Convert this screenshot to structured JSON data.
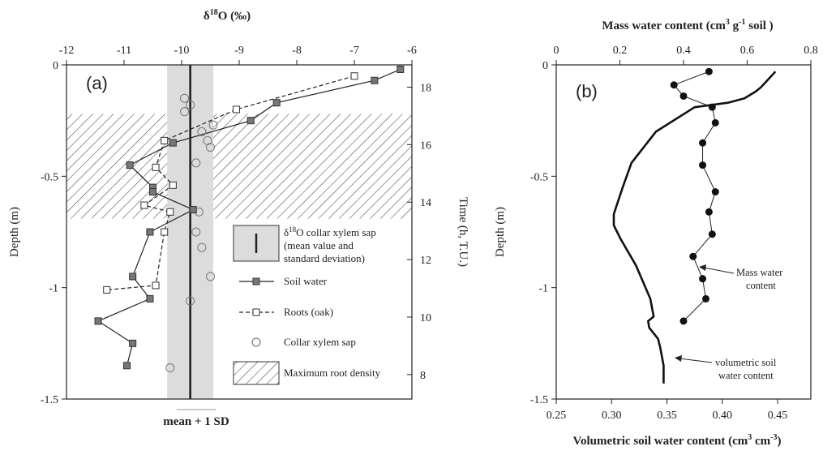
{
  "chart_data": [
    {
      "type": "scatter",
      "panel_label": "(a)",
      "title": "δ18O (‰)",
      "x_top_label": "δ18O (‰)",
      "x_top_ticks": [
        "-12",
        "-11",
        "-10",
        "-9",
        "-8",
        "-7",
        "-6"
      ],
      "xlim": [
        -12,
        -6
      ],
      "ylabel": "Depth (m)",
      "y_ticks": [
        "0",
        "-0.5",
        "-1",
        "-1.5"
      ],
      "ylim": [
        -1.5,
        0
      ],
      "y2label": "Time (h, T.U.)",
      "y2_ticks": [
        "18",
        "16",
        "14",
        "12",
        "10",
        "8"
      ],
      "bottom_note": "mean + 1 SD",
      "collar_mean": -9.85,
      "collar_sd": 0.4,
      "root_density_band_depth": [
        -0.22,
        -0.69
      ],
      "series": [
        {
          "name": "Soil water",
          "marker": "filled-square",
          "line": "solid",
          "x": [
            -6.2,
            -6.65,
            -8.35,
            -8.8,
            -10.15,
            -10.9,
            -10.5,
            -10.5,
            -9.8,
            -10.55,
            -10.85,
            -10.55,
            -11.45,
            -10.85,
            -10.95
          ],
          "y": [
            -0.02,
            -0.07,
            -0.17,
            -0.25,
            -0.35,
            -0.45,
            -0.55,
            -0.57,
            -0.65,
            -0.75,
            -0.95,
            -1.05,
            -1.15,
            -1.25,
            -1.35
          ]
        },
        {
          "name": "Roots (oak)",
          "marker": "open-square",
          "line": "dashed",
          "x": [
            -7.0,
            -9.05,
            -10.3,
            -10.45,
            -10.15,
            -10.65,
            -10.2,
            -10.3,
            -10.45,
            -11.3
          ],
          "y": [
            -0.05,
            -0.2,
            -0.34,
            -0.46,
            -0.54,
            -0.63,
            -0.66,
            -0.75,
            -0.99,
            -1.01
          ]
        },
        {
          "name": "Collar xylem sap",
          "marker": "open-circle",
          "line": "none",
          "x": [
            -9.95,
            -9.85,
            -9.95,
            -9.45,
            -9.65,
            -9.55,
            -9.5,
            -9.75,
            -9.7,
            -9.75,
            -9.65,
            -9.5,
            -9.85,
            -10.2
          ],
          "y": [
            -0.15,
            -0.18,
            -0.21,
            -0.27,
            -0.3,
            -0.34,
            -0.37,
            -0.44,
            -0.66,
            -0.75,
            -0.82,
            -0.95,
            -1.06,
            -1.36
          ]
        }
      ],
      "legend": [
        {
          "label": "δ18O collar xylem sap (mean value and standard deviation)",
          "lines": [
            "δ18O collar xylem sap",
            "(mean value and",
            "standard deviation)"
          ]
        },
        {
          "label": "Soil water"
        },
        {
          "label": "Roots (oak)"
        },
        {
          "label": "Collar xylem sap"
        },
        {
          "label": "Maximum root density"
        }
      ]
    },
    {
      "type": "line",
      "panel_label": "(b)",
      "title": "Mass water content (cm3 g-1 soil)",
      "x_top_label": "Mass water content (cm3 g-1 soil)",
      "x_top_ticks": [
        "0",
        "0.2",
        "0.4",
        "0.6",
        "0.8"
      ],
      "x_top_lim": [
        0,
        0.8
      ],
      "xlabel": "Volumetric soil water content (cm3 cm-3)",
      "x_bottom_ticks": [
        "0.25",
        "0.30",
        "0.35",
        "0.40",
        "0.45"
      ],
      "xlim": [
        0.25,
        0.48
      ],
      "ylabel": "Depth (m)",
      "y_ticks": [
        "0",
        "-0.5",
        "-1",
        "-1.5"
      ],
      "ylim": [
        -1.5,
        0
      ],
      "series": [
        {
          "name": "Mass water content",
          "marker": "filled-circle",
          "axis": "top",
          "x": [
            0.48,
            0.37,
            0.4,
            0.49,
            0.5,
            0.46,
            0.46,
            0.5,
            0.48,
            0.49,
            0.43,
            0.46,
            0.47,
            0.4
          ],
          "y": [
            -0.03,
            -0.09,
            -0.14,
            -0.19,
            -0.26,
            -0.35,
            -0.45,
            -0.57,
            -0.66,
            -0.76,
            -0.86,
            -0.96,
            -1.05,
            -1.15
          ]
        },
        {
          "name": "volumetric soil water content",
          "marker": "none",
          "axis": "bottom",
          "x": [
            0.448,
            0.435,
            0.43,
            0.42,
            0.405,
            0.375,
            0.34,
            0.318,
            0.31,
            0.302,
            0.302,
            0.308,
            0.322,
            0.335,
            0.338,
            0.333,
            0.334,
            0.342,
            0.344,
            0.347,
            0.347
          ],
          "y": [
            -0.03,
            -0.1,
            -0.12,
            -0.15,
            -0.17,
            -0.19,
            -0.3,
            -0.44,
            -0.55,
            -0.67,
            -0.72,
            -0.78,
            -0.9,
            -1.05,
            -1.13,
            -1.15,
            -1.18,
            -1.23,
            -1.27,
            -1.35,
            -1.43
          ]
        }
      ],
      "annotations": [
        {
          "text": "Mass water content",
          "lines": [
            "Mass water",
            "content"
          ]
        },
        {
          "text": "volumetric soil water content",
          "lines": [
            "volumetric soil",
            "water content"
          ]
        }
      ]
    }
  ]
}
